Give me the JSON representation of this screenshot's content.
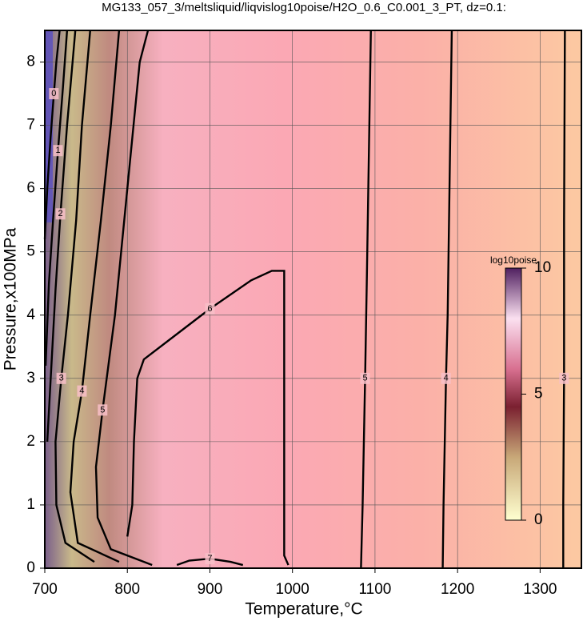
{
  "chart_data": {
    "type": "contour",
    "title": "MG133_057_3/meltsliquid/liqvislog10poise/H2O_0.6_C0.001_3_PT, dz=0.1:",
    "x_label": "Temperature,°C",
    "y_label": "Pressure,x100MPa",
    "xlim": [
      700,
      1350
    ],
    "ylim": [
      0,
      8.5
    ],
    "xticks": [
      700,
      800,
      900,
      1000,
      1100,
      1200,
      1300
    ],
    "yticks": [
      0,
      1,
      2,
      3,
      4,
      5,
      6,
      7,
      8
    ],
    "grid": true,
    "contours": [
      {
        "level": 0,
        "x": [
          700,
          703,
          707,
          711,
          714,
          718
        ],
        "y": [
          5.2,
          6.0,
          6.8,
          7.5,
          8.0,
          8.5
        ]
      },
      {
        "level": 1,
        "x": [
          701,
          705,
          710,
          716,
          722,
          727
        ],
        "y": [
          3.2,
          4.5,
          5.5,
          6.6,
          7.6,
          8.5
        ]
      },
      {
        "level": 2,
        "x": [
          703,
          708,
          713,
          719,
          727,
          737
        ],
        "y": [
          2.0,
          3.2,
          4.4,
          5.6,
          7.0,
          8.5
        ]
      },
      {
        "level": 3,
        "x": [
          760,
          725,
          714,
          713,
          720,
          728,
          738,
          745,
          755
        ],
        "y": [
          0.1,
          0.4,
          1.0,
          2.0,
          3.0,
          4.0,
          5.5,
          7.0,
          8.5
        ]
      },
      {
        "level": 4,
        "x": [
          790,
          740,
          731,
          735,
          745,
          755,
          768,
          780,
          790
        ],
        "y": [
          0.1,
          0.4,
          1.2,
          2.0,
          2.8,
          4.0,
          5.5,
          7.0,
          8.5
        ]
      },
      {
        "level": 5,
        "x": [
          830,
          780,
          764,
          762,
          770,
          785,
          800,
          815,
          825
        ],
        "y": [
          0.05,
          0.3,
          0.8,
          1.6,
          2.5,
          4.0,
          6.0,
          8.0,
          8.5
        ]
      },
      {
        "level": 6,
        "x": [
          800,
          806,
          808,
          812,
          820,
          850,
          900,
          950,
          975,
          990,
          990,
          995
        ],
        "y": [
          0.5,
          1.0,
          2.0,
          3.0,
          3.3,
          3.6,
          4.1,
          4.55,
          4.7,
          4.7,
          0.2,
          0.05
        ]
      },
      {
        "level": 7,
        "x": [
          860,
          875,
          900,
          925,
          940
        ],
        "y": [
          0.05,
          0.12,
          0.15,
          0.1,
          0.05
        ]
      },
      {
        "level": 5,
        "x": [
          1083,
          1085,
          1088,
          1090,
          1095
        ],
        "y": [
          0.0,
          1.0,
          3.0,
          4.5,
          8.5
        ]
      },
      {
        "level": 4,
        "x": [
          1182,
          1183,
          1186,
          1188,
          1193
        ],
        "y": [
          0.0,
          1.0,
          3.0,
          4.0,
          8.5
        ]
      },
      {
        "level": 3,
        "x": [
          1328,
          1328,
          1329,
          1329,
          1330
        ],
        "y": [
          0.0,
          1.0,
          3.0,
          5.5,
          8.5
        ]
      }
    ],
    "colorbar": {
      "label": "log10poise",
      "lim": [
        0,
        10
      ],
      "ticks": [
        0,
        5,
        10
      ]
    }
  }
}
